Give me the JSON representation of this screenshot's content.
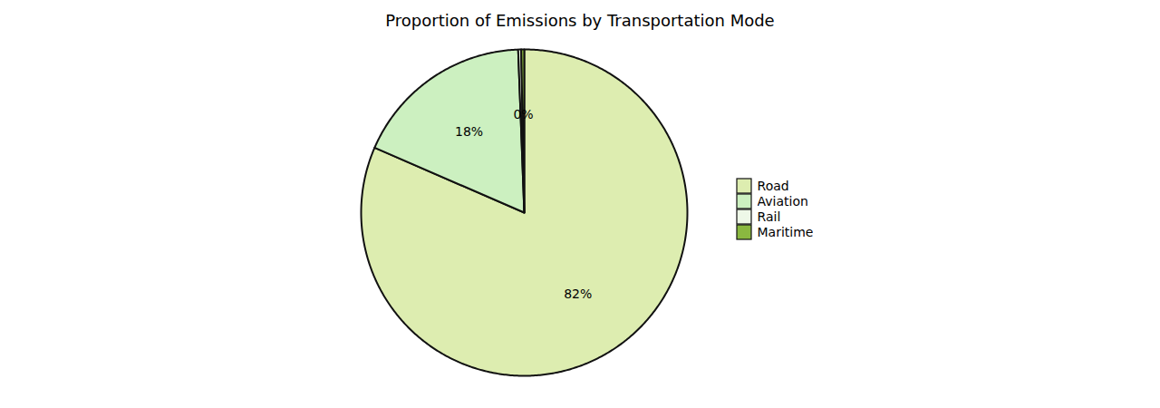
{
  "chart_data": {
    "type": "pie",
    "title": "Proportion of Emissions by Transportation Mode",
    "categories": [
      "Road",
      "Aviation",
      "Rail",
      "Maritime"
    ],
    "values": [
      82,
      18,
      0.3,
      0.3
    ],
    "value_labels": [
      "82%",
      "18%",
      null,
      "0%"
    ],
    "colors": [
      "#ddedb0",
      "#ccf0c0",
      "#eef8e8",
      "#8ab840"
    ],
    "data_labels": true,
    "legend": "right"
  }
}
